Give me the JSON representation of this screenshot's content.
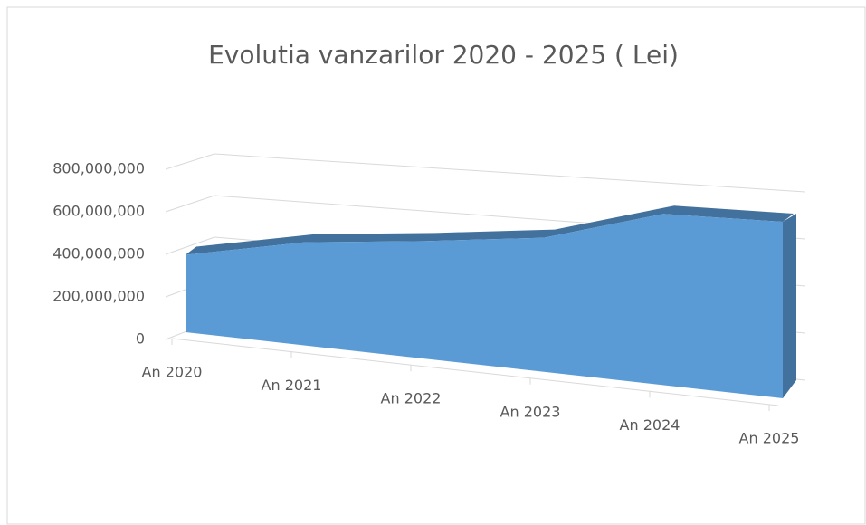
{
  "chart_data": {
    "type": "area3d",
    "title": "Evolutia vanzarilor 2020 - 2025 ( Lei)",
    "categories": [
      "An 2020",
      "An 2021",
      "An 2022",
      "An 2023",
      "An 2024",
      "An 2025"
    ],
    "values": [
      380000000,
      465000000,
      490000000,
      520000000,
      620000000,
      600000000
    ],
    "color": "#5b9bd5",
    "ylim": [
      0,
      800000000
    ],
    "yticks": [
      0,
      {
        "value": 200000000,
        "label": "200,000,000"
      },
      {
        "value": 400000000,
        "label": "400,000,000"
      },
      {
        "value": 600000000,
        "label": "600,000,000"
      },
      {
        "value": 800000000,
        "label": "800,000,000"
      }
    ],
    "grid": true
  }
}
